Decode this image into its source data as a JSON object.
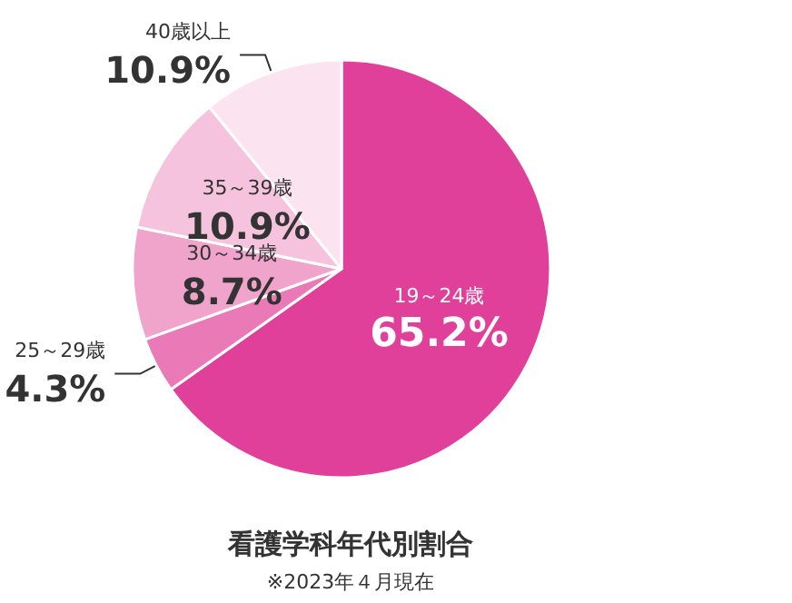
{
  "chart_data": {
    "type": "pie",
    "title": "看護学科年代別割合",
    "subtitle": "※2023年４月現在",
    "categories": [
      "19～24歳",
      "25～29歳",
      "30～34歳",
      "35～39歳",
      "40歳以上"
    ],
    "values": [
      65.2,
      4.3,
      8.7,
      10.9,
      10.9
    ],
    "value_labels": [
      "65.2%",
      "4.3%",
      "8.7%",
      "10.9%",
      "10.9%"
    ],
    "colors": [
      "#e0409a",
      "#e97ab7",
      "#f0a3cb",
      "#f5c3dd",
      "#fbe4f0"
    ],
    "legend": false
  }
}
